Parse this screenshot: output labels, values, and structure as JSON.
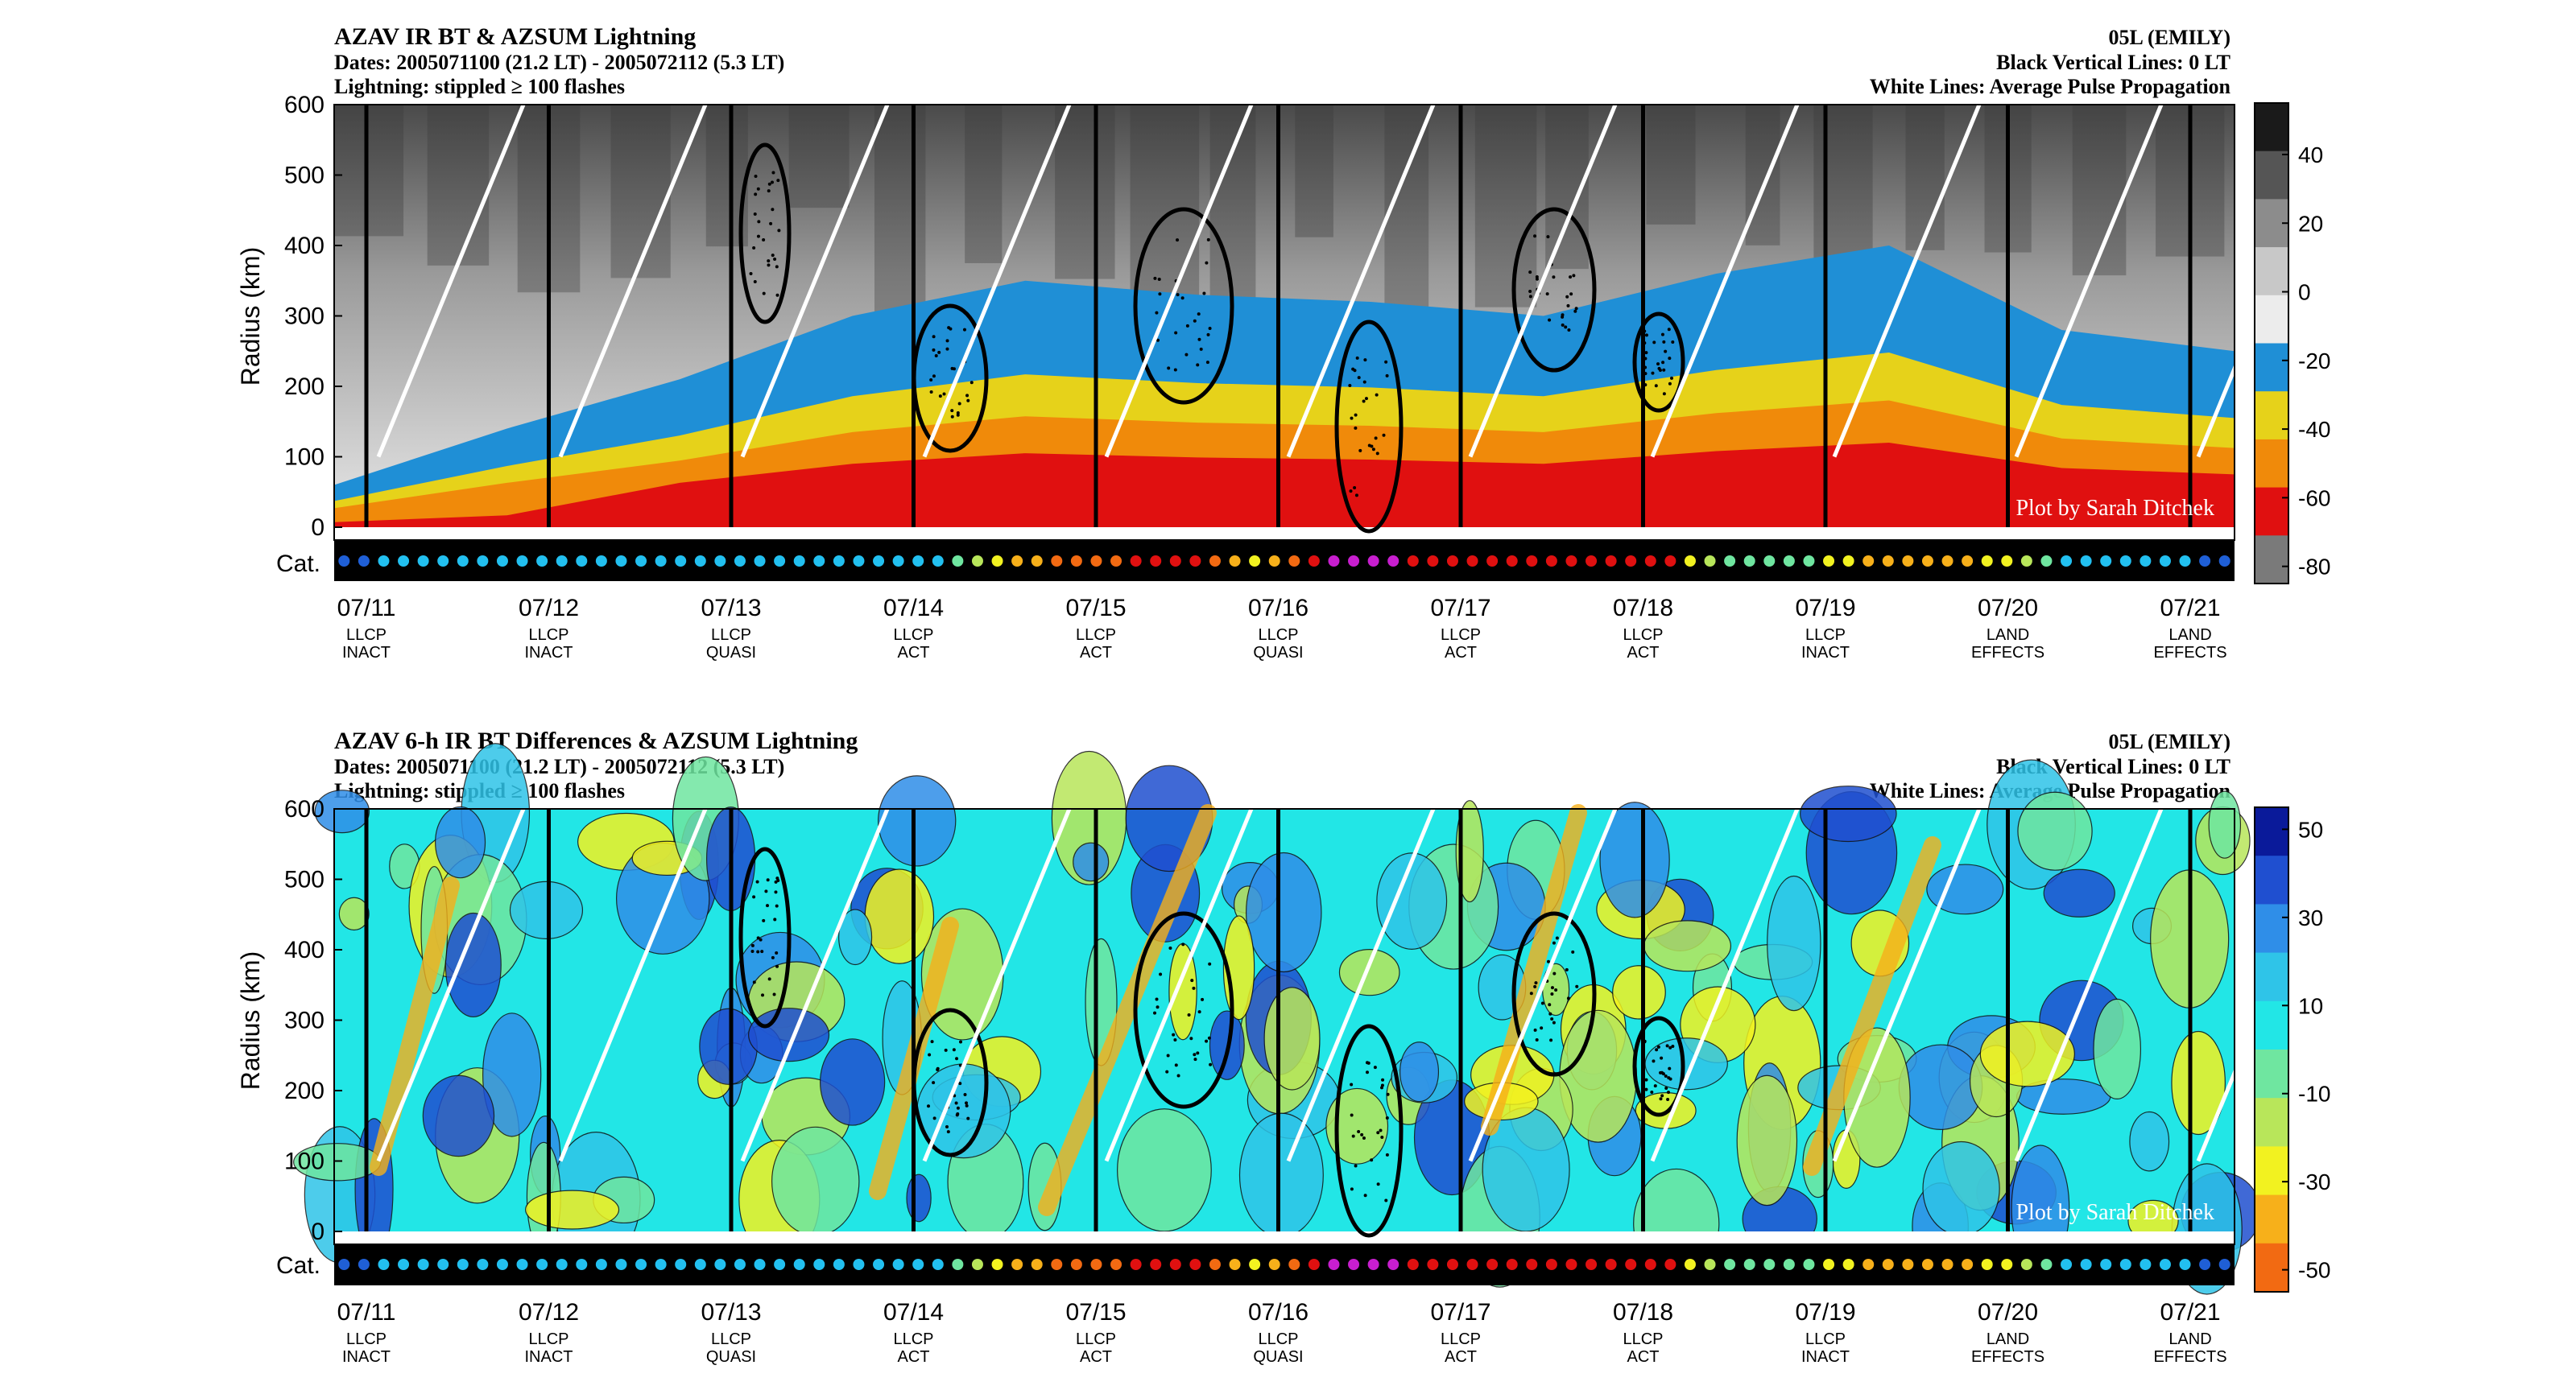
{
  "charts": [
    {
      "title": "AZAV IR BT & AZSUM Lightning",
      "dates_line": "Dates: 2005071100 (21.2 LT) - 2005072112 (5.3 LT)",
      "lightning_line": "Lightning: stippled ≥ 100 flashes",
      "storm": "05L (EMILY)",
      "vlines_note": "Black Vertical Lines: 0 LT",
      "wlines_note": "White Lines: Average Pulse Propagation",
      "watermark": "Plot by Sarah Ditchek",
      "ylabel": "Radius (km)",
      "cat_label": "Cat.",
      "yticks": [
        "0",
        "100",
        "200",
        "300",
        "400",
        "500",
        "600"
      ],
      "colorbar_ticks": [
        "40",
        "20",
        "0",
        "-20",
        "-40",
        "-60",
        "-80"
      ],
      "colorbar_colors": [
        "#1a1a1a",
        "#555555",
        "#8c8c8c",
        "#c8c8c8",
        "#ececec",
        "#1f8fd6",
        "#e6d21a",
        "#f08a0a",
        "#e01010",
        "#7a7a7a"
      ]
    },
    {
      "title": "AZAV 6-h IR BT Differences & AZSUM Lightning",
      "dates_line": "Dates: 2005071100 (21.2 LT) - 2005072112 (5.3 LT)",
      "lightning_line": "Lightning: stippled ≥ 100 flashes",
      "storm": "05L (EMILY)",
      "vlines_note": "Black Vertical Lines: 0 LT",
      "wlines_note": "White Lines: Average Pulse Propagation",
      "watermark": "Plot by Sarah Ditchek",
      "ylabel": "Radius (km)",
      "cat_label": "Cat.",
      "yticks": [
        "0",
        "100",
        "200",
        "300",
        "400",
        "500",
        "600"
      ],
      "colorbar_ticks": [
        "50",
        "30",
        "10",
        "-10",
        "-30",
        "-50"
      ],
      "colorbar_colors": [
        "#0a1a9a",
        "#1f4fd0",
        "#2f8ee8",
        "#2fc4e8",
        "#22e6e6",
        "#6fe6a0",
        "#b8e65a",
        "#f2f220",
        "#f7b01a",
        "#f26a12"
      ]
    }
  ],
  "chart_data": [
    {
      "type": "heatmap",
      "title": "AZAV IR BT & AZSUM Lightning",
      "xlabel": "",
      "ylabel": "Radius (km)",
      "ylim": [
        0,
        600
      ],
      "colorbar_range": [
        -80,
        50
      ],
      "x_dates": [
        "07/11",
        "07/12",
        "07/13",
        "07/14",
        "07/15",
        "07/16",
        "07/17",
        "07/18",
        "07/19",
        "07/20",
        "07/21"
      ],
      "x_labels_line1": [
        "LLCP",
        "LLCP",
        "LLCP",
        "LLCP",
        "LLCP",
        "LLCP",
        "LLCP",
        "LLCP",
        "LLCP",
        "LAND",
        "LAND"
      ],
      "x_labels_line2": [
        "INACT",
        "INACT",
        "QUASI",
        "ACT",
        "ACT",
        "QUASI",
        "ACT",
        "ACT",
        "INACT",
        "EFFECTS",
        "EFFECTS"
      ],
      "cold_cloud_top_radius_km": [
        60,
        140,
        210,
        300,
        350,
        330,
        320,
        300,
        360,
        400,
        280,
        250
      ]
    },
    {
      "type": "heatmap",
      "title": "AZAV 6-h IR BT Differences & AZSUM Lightning",
      "xlabel": "",
      "ylabel": "Radius (km)",
      "ylim": [
        0,
        600
      ],
      "colorbar_range": [
        -50,
        50
      ],
      "x_dates": [
        "07/11",
        "07/12",
        "07/13",
        "07/14",
        "07/15",
        "07/16",
        "07/17",
        "07/18",
        "07/19",
        "07/20",
        "07/21"
      ],
      "x_labels_line1": [
        "LLCP",
        "LLCP",
        "LLCP",
        "LLCP",
        "LLCP",
        "LLCP",
        "LLCP",
        "LLCP",
        "LLCP",
        "LAND",
        "LAND"
      ],
      "x_labels_line2": [
        "INACT",
        "INACT",
        "QUASI",
        "ACT",
        "ACT",
        "QUASI",
        "ACT",
        "ACT",
        "INACT",
        "EFFECTS",
        "EFFECTS"
      ]
    }
  ],
  "category_dot_colors": [
    "#1f5fd6",
    "#1f5fd6",
    "#22c0f0",
    "#22c0f0",
    "#22c0f0",
    "#22c0f0",
    "#22c0f0",
    "#22c0f0",
    "#22c0f0",
    "#22c0f0",
    "#22c0f0",
    "#22c0f0",
    "#22c0f0",
    "#22c0f0",
    "#22c0f0",
    "#22c0f0",
    "#22c0f0",
    "#22c0f0",
    "#22c0f0",
    "#22c0f0",
    "#22c0f0",
    "#22c0f0",
    "#22c0f0",
    "#22c0f0",
    "#22c0f0",
    "#22c0f0",
    "#22c0f0",
    "#22c0f0",
    "#22c0f0",
    "#22c0f0",
    "#22c0f0",
    "#6fe6a0",
    "#b8e65a",
    "#f2f220",
    "#f7b01a",
    "#f7b01a",
    "#f26a12",
    "#f26a12",
    "#f26a12",
    "#f26a12",
    "#e01010",
    "#e01010",
    "#e01010",
    "#e01010",
    "#f26a12",
    "#f7b01a",
    "#f2f220",
    "#f7b01a",
    "#f26a12",
    "#e01010",
    "#c81ecf",
    "#c81ecf",
    "#c81ecf",
    "#c81ecf",
    "#e01010",
    "#e01010",
    "#e01010",
    "#e01010",
    "#e01010",
    "#e01010",
    "#e01010",
    "#e01010",
    "#e01010",
    "#e01010",
    "#e01010",
    "#e01010",
    "#e01010",
    "#e01010",
    "#f2f220",
    "#b8e65a",
    "#6fe6a0",
    "#6fe6a0",
    "#6fe6a0",
    "#6fe6a0",
    "#6fe6a0",
    "#f2f220",
    "#f2f220",
    "#f7b01a",
    "#f7b01a",
    "#f7b01a",
    "#f7b01a",
    "#f7b01a",
    "#f7b01a",
    "#f2f220",
    "#f2f220",
    "#b8e65a",
    "#6fe6a0",
    "#22c0f0",
    "#22c0f0",
    "#22c0f0",
    "#22c0f0",
    "#22c0f0",
    "#22c0f0",
    "#22c0f0",
    "#1f5fd6",
    "#1f5fd6"
  ]
}
